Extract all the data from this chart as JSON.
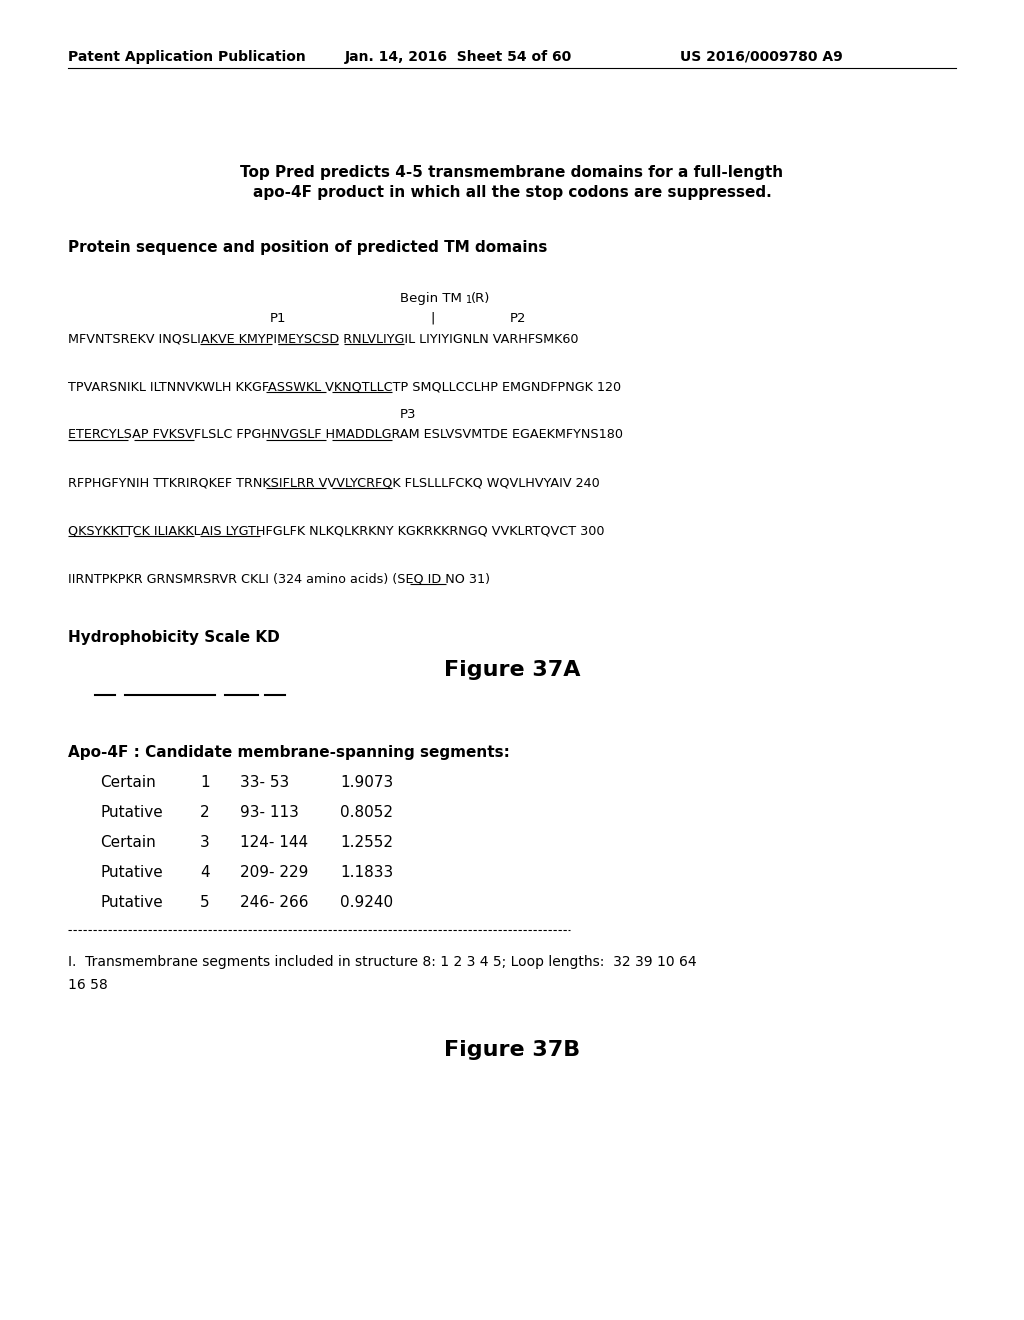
{
  "header_left": "Patent Application Publication",
  "header_mid": "Jan. 14, 2016  Sheet 54 of 60",
  "header_right": "US 2016/0009780 A9",
  "title_line1": "Top Pred predicts 4-5 transmembrane domains for a full-length",
  "title_line2": "apo-4F product in which all the stop codons are suppressed.",
  "subtitle": "Protein sequence and position of predicted TM domains",
  "seq_line1": "MFVNTSREKV INQSLIAKVE KMYPIMEYSCSD RNLVLIYGIL LIYIYIGNLN VARHFSMK60",
  "seq_line2": "TPVARSNIKL ILTNNVKWLH KKGFASSWKL VKNQTLLCTP SMQLLCCLHP EMGNDFPNGK 120",
  "seq_line3": "ETERCYLSAP FVKSVFLSLC FPGHNVGSLF HMADDLGRAM ESLVSVMTDE EGAEKMFYNS180",
  "seq_line4": "RFPHGFYNIH TTKRIRQKEF TRNKSIFLRR VVVLYCRFQK FLSLLLFCKQ WQVLHVYAIV 240",
  "seq_line5": "QKSYKKTTCK ILIAKKLAIS LYGTHFGLFK NLKQLKRKNY KGKRKKRNGQ VVKLRTQVCT 300",
  "seq_line6": "IIRNTPKPKR GRNSMRSRVR CKLI (324 amino acids) (SEQ ID NO 31)",
  "hydrophobicity_label": "Hydrophobicity Scale KD",
  "figure_37a": "Figure 37A",
  "apo4f_header": "Apo-4F : Candidate membrane-spanning segments:",
  "table_rows": [
    {
      "type": "Certain",
      "num": "1",
      "range": "33- 53",
      "score": "1.9073"
    },
    {
      "type": "Putative",
      "num": "2",
      "range": "93- 113",
      "score": "0.8052"
    },
    {
      "type": "Certain",
      "num": "3",
      "range": "124- 144",
      "score": "1.2552"
    },
    {
      "type": "Putative",
      "num": "4",
      "range": "209- 229",
      "score": "1.1833"
    },
    {
      "type": "Putative",
      "num": "5",
      "range": "246- 266",
      "score": "0.9240"
    }
  ],
  "footer_note": "I.  Transmembrane segments included in structure 8: 1 2 3 4 5; Loop lengths:  32 39 10 64",
  "footer_note2": "16 58",
  "figure_37b": "Figure 37B",
  "bg_color": "#ffffff",
  "text_color": "#000000"
}
